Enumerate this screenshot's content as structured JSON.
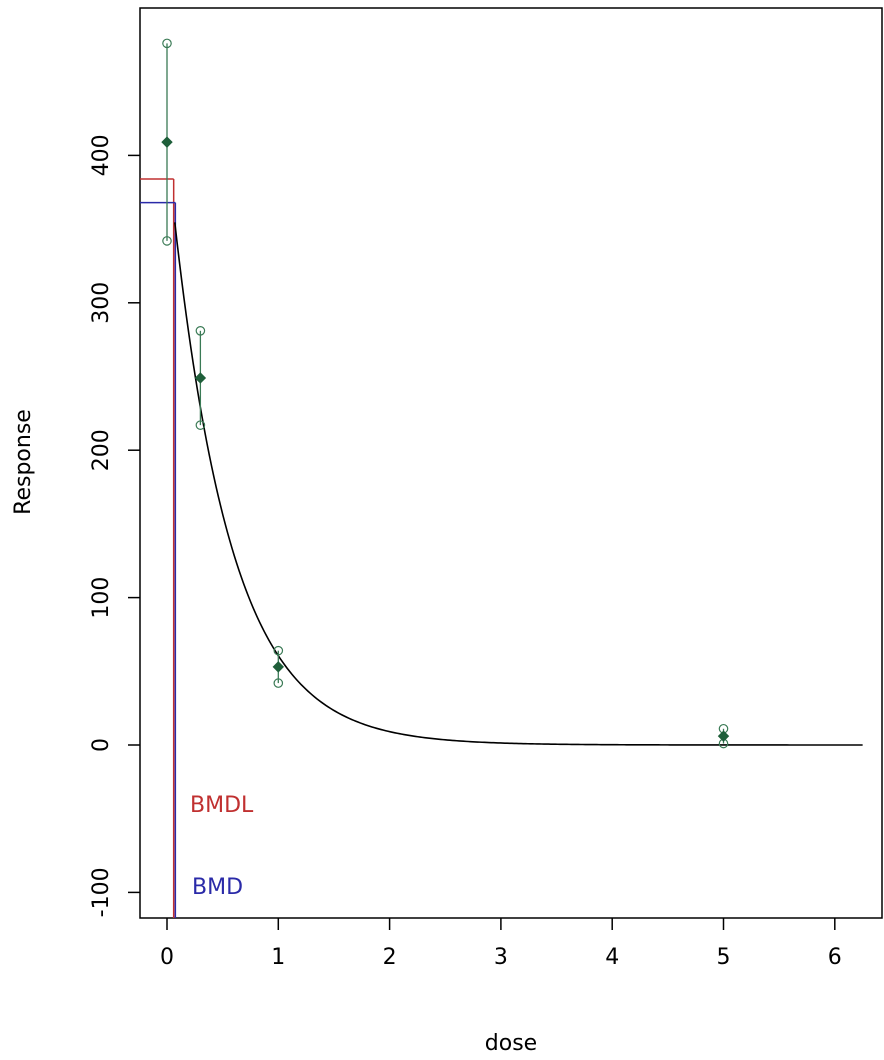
{
  "chart_data": {
    "type": "scatter",
    "title": "",
    "xlabel": "dose",
    "ylabel": "Response",
    "xlim": [
      -0.25,
      6.3
    ],
    "ylim": [
      -120,
      500
    ],
    "x_ticks": [
      0,
      1,
      2,
      3,
      4,
      5,
      6
    ],
    "x_tick_labels": [
      "0",
      "1",
      "2",
      "3",
      "4",
      "5",
      "6"
    ],
    "y_ticks": [
      -100,
      0,
      100,
      200,
      300,
      400
    ],
    "y_tick_labels": [
      "-100",
      "0",
      "100",
      "200",
      "300",
      "400"
    ],
    "grid": false,
    "observations": [
      {
        "dose": 0,
        "mean": 409,
        "lower": 342,
        "upper": 476
      },
      {
        "dose": 0.3,
        "mean": 249,
        "lower": 217,
        "upper": 281
      },
      {
        "dose": 1,
        "mean": 53,
        "lower": 42,
        "upper": 64
      },
      {
        "dose": 5,
        "mean": 6,
        "lower": 1,
        "upper": 11
      }
    ],
    "fitted_model": {
      "name": "exponential",
      "a": 405,
      "b": 1.9,
      "x_range": [
        0.07,
        6.25
      ]
    },
    "bmd": {
      "label": "BMD",
      "dose": 0.075,
      "response": 368,
      "color": "#2a2aa8"
    },
    "bmdl": {
      "label": "BMDL",
      "dose": 0.06,
      "response": 384,
      "color": "#c03030"
    },
    "colors": {
      "points": "#1f5f3a",
      "error_bars": "#3a7a55",
      "curve": "#000000"
    }
  }
}
